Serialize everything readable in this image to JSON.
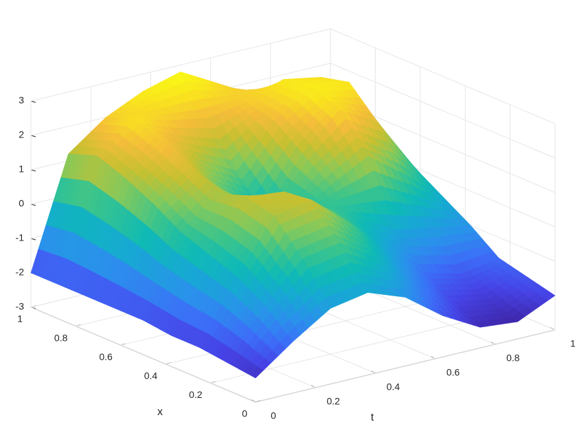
{
  "chart_data": {
    "type": "surface",
    "xlabel": "x",
    "tlabel": "t",
    "t": [
      0,
      0.125,
      0.25,
      0.375,
      0.5,
      0.625,
      0.75,
      0.875,
      1
    ],
    "x": [
      0,
      0.125,
      0.25,
      0.375,
      0.5,
      0.625,
      0.75,
      0.875,
      1
    ],
    "z": [
      [
        -2.3,
        -1.5,
        -0.8,
        -0.6,
        -1.0,
        -1.8,
        -2.4,
        -2.5,
        -2.0
      ],
      [
        -2.2,
        -0.8,
        0.3,
        0.5,
        -0.2,
        -1.2,
        -2.0,
        -2.2,
        -1.8
      ],
      [
        -2.1,
        -0.3,
        1.2,
        1.4,
        0.5,
        -0.6,
        -1.5,
        -1.8,
        -1.6
      ],
      [
        -2.1,
        0.0,
        1.4,
        1.3,
        0.6,
        0.0,
        -0.6,
        -0.8,
        -1.0
      ],
      [
        -2.0,
        0.3,
        1.2,
        0.6,
        0.0,
        0.6,
        1.2,
        0.4,
        -0.5
      ],
      [
        -2.0,
        0.8,
        1.6,
        0.5,
        -0.3,
        1.2,
        2.2,
        1.6,
        0.0
      ],
      [
        -2.0,
        1.2,
        2.0,
        1.2,
        0.6,
        1.8,
        2.5,
        2.4,
        0.2
      ],
      [
        -2.0,
        1.5,
        2.3,
        2.0,
        1.8,
        2.0,
        2.4,
        2.2,
        0.0
      ],
      [
        -2.0,
        1.2,
        2.0,
        2.5,
        2.8,
        2.2,
        1.6,
        1.0,
        -0.5
      ]
    ],
    "tlim": [
      0,
      1
    ],
    "tticks": [
      0,
      0.2,
      0.4,
      0.6,
      0.8,
      1
    ],
    "xlim": [
      0,
      1
    ],
    "xticks": [
      0,
      0.2,
      0.4,
      0.6,
      0.8,
      1
    ],
    "zlim": [
      -3,
      3
    ],
    "zticks": [
      -3,
      -2,
      -1,
      0,
      1,
      2,
      3
    ],
    "colormap": "parula",
    "grid": true
  }
}
